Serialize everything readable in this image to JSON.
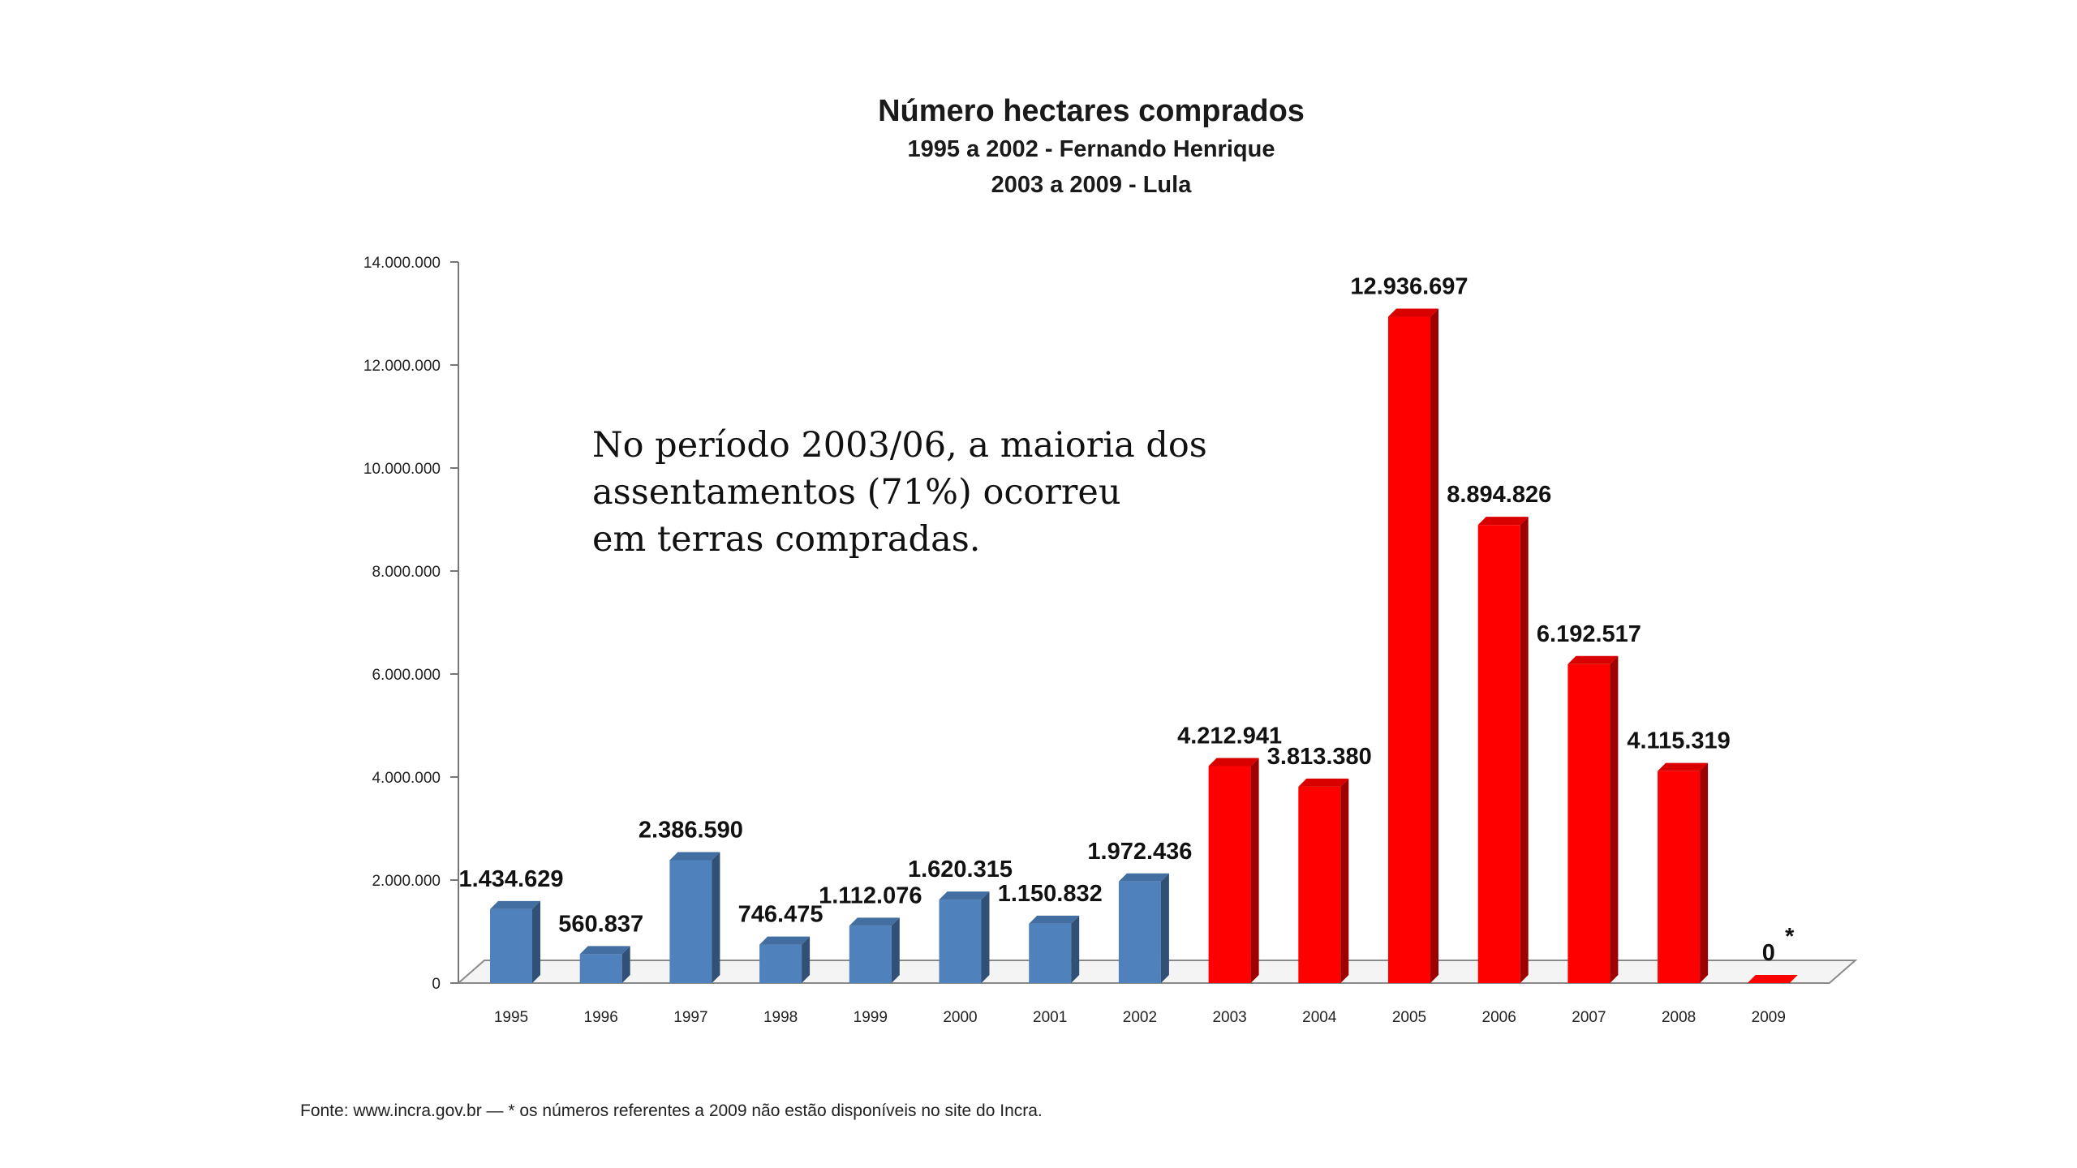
{
  "chart_data": {
    "type": "bar",
    "title": "Número hectares comprados",
    "subtitles": [
      "1995 a 2002 - Fernando Henrique",
      "2003 a 2009 - Lula"
    ],
    "xlabel": "",
    "ylabel": "",
    "ylim": [
      0,
      14000000
    ],
    "y_ticks": [
      0,
      2000000,
      4000000,
      6000000,
      8000000,
      10000000,
      12000000,
      14000000
    ],
    "y_tick_labels": [
      "0",
      "2.000.000",
      "4.000.000",
      "6.000.000",
      "8.000.000",
      "10.000.000",
      "12.000.000",
      "14.000.000"
    ],
    "categories": [
      "1995",
      "1996",
      "1997",
      "1998",
      "1999",
      "2000",
      "2001",
      "2002",
      "2003",
      "2004",
      "2005",
      "2006",
      "2007",
      "2008",
      "2009"
    ],
    "values": [
      1434629,
      560837,
      2386590,
      746475,
      1112076,
      1620315,
      1150832,
      1972436,
      4212941,
      3813380,
      12936697,
      8894826,
      6192517,
      4115319,
      0
    ],
    "data_labels": [
      "1.434.629",
      "560.837",
      "2.386.590",
      "746.475",
      "1.112.076",
      "1.620.315",
      "1.150.832",
      "1.972.436",
      "4.212.941",
      "3.813.380",
      "12.936.697",
      "8.894.826",
      "6.192.517",
      "4.115.319",
      "0"
    ],
    "series": [
      {
        "name": "1995 a 2002 - Fernando Henrique",
        "categories": [
          "1995",
          "1996",
          "1997",
          "1998",
          "1999",
          "2000",
          "2001",
          "2002"
        ],
        "color": "#4f81bd"
      },
      {
        "name": "2003 a 2009 - Lula",
        "categories": [
          "2003",
          "2004",
          "2005",
          "2006",
          "2007",
          "2008",
          "2009"
        ],
        "color": "#ff0000"
      }
    ],
    "grid": false,
    "footnote_marker": "*",
    "footnote_marker_category": "2009"
  },
  "annotation": {
    "lines": [
      "No período 2003/06, a maioria dos",
      "assentamentos (71%) ocorreu",
      "em terras compradas."
    ]
  },
  "source_note": "Fonte: www.incra.gov.br — * os números referentes a 2009 não estão disponíveis no site do Incra.",
  "colors": {
    "fhc": "#4f81bd",
    "lula": "#ff0000"
  }
}
